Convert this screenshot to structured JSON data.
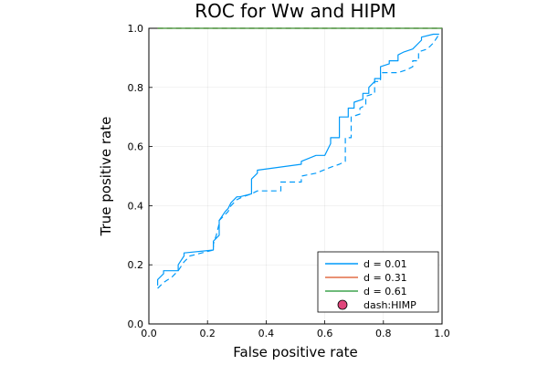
{
  "chart_data": {
    "type": "line",
    "title": "ROC for Ww and HIPM",
    "xlabel": "False positive rate",
    "ylabel": "True positive rate",
    "xlim": [
      0,
      1
    ],
    "ylim": [
      0,
      1
    ],
    "xticks": [
      "0.0",
      "0.2",
      "0.4",
      "0.6",
      "0.8",
      "1.0"
    ],
    "yticks": [
      "0.0",
      "0.2",
      "0.4",
      "0.6",
      "0.8",
      "1.0"
    ],
    "grid": true,
    "legend_position": "bottom-right",
    "colors": {
      "blue": "#009AFA",
      "orange": "#E26F46",
      "green": "#3EA44E",
      "pink": "#E0457B"
    },
    "series": [
      {
        "name": "d = 0.01",
        "color": "#009AFA",
        "style": "solid",
        "x": [
          0.03,
          0.03,
          0.05,
          0.05,
          0.1,
          0.1,
          0.12,
          0.12,
          0.22,
          0.22,
          0.24,
          0.24,
          0.26,
          0.27,
          0.28,
          0.29,
          0.3,
          0.31,
          0.35,
          0.35,
          0.37,
          0.37,
          0.52,
          0.52,
          0.57,
          0.6,
          0.62,
          0.62,
          0.65,
          0.65,
          0.68,
          0.68,
          0.7,
          0.7,
          0.73,
          0.73,
          0.75,
          0.75,
          0.77,
          0.77,
          0.79,
          0.79,
          0.82,
          0.82,
          0.85,
          0.85,
          0.87,
          0.87,
          0.9,
          0.93,
          0.93,
          0.97,
          0.97,
          0.99
        ],
        "y": [
          0.13,
          0.15,
          0.17,
          0.18,
          0.18,
          0.2,
          0.23,
          0.24,
          0.25,
          0.28,
          0.3,
          0.35,
          0.38,
          0.39,
          0.41,
          0.42,
          0.43,
          0.43,
          0.44,
          0.49,
          0.51,
          0.52,
          0.54,
          0.55,
          0.57,
          0.57,
          0.61,
          0.63,
          0.63,
          0.7,
          0.7,
          0.73,
          0.73,
          0.75,
          0.76,
          0.78,
          0.78,
          0.8,
          0.82,
          0.83,
          0.83,
          0.87,
          0.88,
          0.89,
          0.89,
          0.91,
          0.92,
          0.92,
          0.93,
          0.96,
          0.97,
          0.98,
          0.98,
          0.98
        ]
      },
      {
        "name": "",
        "color": "#009AFA",
        "style": "dash",
        "x": [
          0.03,
          0.05,
          0.08,
          0.1,
          0.12,
          0.14,
          0.18,
          0.22,
          0.22,
          0.23,
          0.24,
          0.24,
          0.26,
          0.27,
          0.28,
          0.3,
          0.32,
          0.35,
          0.37,
          0.45,
          0.45,
          0.52,
          0.52,
          0.57,
          0.62,
          0.65,
          0.67,
          0.67,
          0.69,
          0.69,
          0.72,
          0.72,
          0.74,
          0.74,
          0.77,
          0.77,
          0.79,
          0.79,
          0.82,
          0.85,
          0.88,
          0.9,
          0.9,
          0.92,
          0.92,
          0.95,
          0.97,
          0.99
        ],
        "y": [
          0.12,
          0.14,
          0.16,
          0.18,
          0.21,
          0.23,
          0.24,
          0.25,
          0.27,
          0.3,
          0.34,
          0.35,
          0.37,
          0.38,
          0.4,
          0.42,
          0.43,
          0.44,
          0.45,
          0.45,
          0.48,
          0.48,
          0.5,
          0.51,
          0.53,
          0.54,
          0.55,
          0.63,
          0.63,
          0.7,
          0.71,
          0.73,
          0.74,
          0.77,
          0.78,
          0.82,
          0.82,
          0.85,
          0.85,
          0.85,
          0.86,
          0.87,
          0.89,
          0.89,
          0.92,
          0.93,
          0.95,
          0.98
        ]
      },
      {
        "name": "d = 0.31",
        "color": "#E26F46",
        "style": "solid",
        "x": [
          0.03,
          1.0
        ],
        "y": [
          1.0,
          1.0
        ]
      },
      {
        "name": "d = 0.61",
        "color": "#3EA44E",
        "style": "solid",
        "x": [
          0.03,
          1.0
        ],
        "y": [
          1.0,
          1.0
        ]
      },
      {
        "name": "",
        "color": "#E26F46",
        "style": "dash",
        "x": [
          0.03,
          1.0
        ],
        "y": [
          1.0,
          1.0
        ]
      },
      {
        "name": "",
        "color": "#3EA44E",
        "style": "dash",
        "x": [
          0.03,
          1.0
        ],
        "y": [
          1.0,
          1.0
        ]
      }
    ],
    "legend": [
      {
        "label": "d = 0.01",
        "color": "#009AFA",
        "marker": "line"
      },
      {
        "label": "d = 0.31",
        "color": "#E26F46",
        "marker": "line"
      },
      {
        "label": "d = 0.61",
        "color": "#3EA44E",
        "marker": "line"
      },
      {
        "label": "dash:HIMP",
        "color": "#E0457B",
        "marker": "circle"
      }
    ]
  }
}
